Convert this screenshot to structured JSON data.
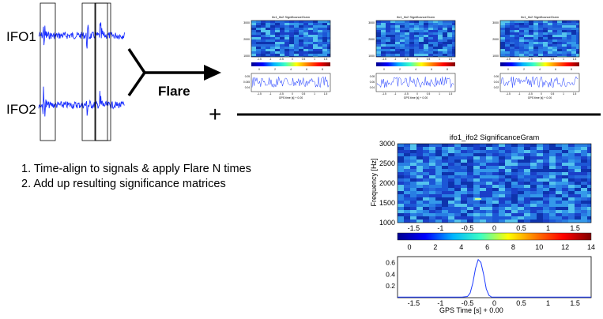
{
  "inputs": {
    "ifo1_label": "IFO1",
    "ifo2_label": "IFO2"
  },
  "flare_label": "Flare",
  "operator_symbol": "+",
  "steps": [
    "1. Time-align to signals & apply Flare N times",
    "2. Add up resulting significance matrices"
  ],
  "small_panels": [
    {
      "title": "ifo1_ifo2 SignificanceGram",
      "time_label": "GPS time [s] + 0.00",
      "y_ticks": [
        "0.05",
        "0.045",
        "0.04"
      ]
    },
    {
      "title": "ifo1_ifo2 SignificanceGram",
      "time_label": "GPS time [s] + 0.00",
      "y_ticks": [
        "0.08",
        "0.06",
        "0.04"
      ]
    },
    {
      "title": "ifo1_ifo2 SignificanceGram",
      "time_label": "GPS time [s] + 0.00",
      "y_ticks": [
        "0.06",
        "0.04",
        "0.02"
      ]
    }
  ],
  "small_freq_ticks": [
    "3000",
    "2000",
    "1000"
  ],
  "small_x_ticks": [
    "-1.5",
    "-1",
    "-0.5",
    "0",
    "0.5",
    "1",
    "1.5"
  ],
  "small_cbar_ticks": [
    "0",
    "2",
    "4",
    "6",
    "8"
  ],
  "result_panel": {
    "title": "ifo1_ifo2 SignificanceGram",
    "ylabel": "Frequency [Hz]",
    "xlabel": "GPS Time [s] + 0.00",
    "freq_ticks": [
      "3000",
      "2500",
      "2000",
      "1500",
      "1000"
    ],
    "x_ticks": [
      "-1.5",
      "-1",
      "-0.5",
      "0",
      "0.5",
      "1",
      "1.5"
    ],
    "colorbar_ticks": [
      "0",
      "2",
      "4",
      "6",
      "8",
      "10",
      "12",
      "14"
    ],
    "sum_y_ticks": [
      "0.6",
      "0.4",
      "0.2"
    ],
    "sum_x_ticks": [
      "-1.5",
      "-1",
      "-0.5",
      "0",
      "0.5",
      "1",
      "1.5"
    ]
  },
  "colors": {
    "waveform": "#1a2fff",
    "flare_text": "#e8352b",
    "spectrogram_bg": "#1450c8",
    "colormap": [
      "#00008f",
      "#0000ff",
      "#00b4ff",
      "#3cffc3",
      "#ffff00",
      "#ff7800",
      "#ff0000",
      "#800000"
    ],
    "sum_trace": "#1f3cff"
  },
  "chart_data": [
    {
      "type": "heatmap",
      "title": "ifo1_ifo2 SignificanceGram",
      "xlabel": "GPS Time [s] + 0.00",
      "ylabel": "Frequency [Hz]",
      "xlim": [
        -1.8,
        1.8
      ],
      "ylim": [
        1000,
        3000
      ],
      "colorbar_range": [
        0,
        14
      ],
      "hotspot": {
        "x": -0.3,
        "y": 1600
      }
    },
    {
      "type": "line",
      "title": "",
      "xlabel": "GPS Time [s] + 0.00",
      "ylabel": "",
      "xlim": [
        -1.8,
        1.8
      ],
      "ylim": [
        0,
        0.7
      ],
      "series": [
        {
          "x": [
            -1.8,
            -1.5,
            -1.0,
            -0.6,
            -0.5,
            -0.45,
            -0.4,
            -0.35,
            -0.3,
            -0.25,
            -0.2,
            -0.15,
            -0.1,
            -0.05,
            0.0,
            0.5,
            1.0,
            1.5,
            1.8
          ],
          "values": [
            0.01,
            0.01,
            0.01,
            0.01,
            0.02,
            0.08,
            0.25,
            0.5,
            0.65,
            0.6,
            0.4,
            0.15,
            0.04,
            0.01,
            0.01,
            0.01,
            0.01,
            0.01,
            0.01
          ]
        }
      ]
    }
  ]
}
